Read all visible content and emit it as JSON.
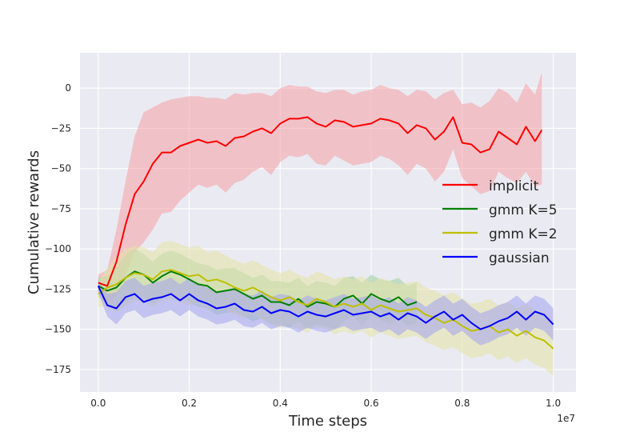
{
  "chart_data": {
    "type": "line",
    "title": "",
    "xlabel": "Time steps",
    "ylabel": "Cumulative rewards",
    "x_offset_label": "1e7",
    "xlim": [
      -0.04,
      1.05
    ],
    "ylim": [
      -189,
      22
    ],
    "x_ticks": [
      0.0,
      0.2,
      0.4,
      0.6,
      0.8,
      1.0
    ],
    "x_tick_labels": [
      "0.0",
      "0.2",
      "0.4",
      "0.6",
      "0.8",
      "1.0"
    ],
    "y_ticks": [
      -175,
      -150,
      -125,
      -100,
      -75,
      -50,
      -25,
      0
    ],
    "y_tick_labels": [
      "−175",
      "−150",
      "−125",
      "−100",
      "−75",
      "−50",
      "−25",
      "0"
    ],
    "grid": true,
    "legend_position": "center-right",
    "series": [
      {
        "name": "implicit",
        "color": "#ff0000",
        "band_color": "#f4a0a6",
        "x": [
          0.0,
          0.02,
          0.04,
          0.06,
          0.08,
          0.1,
          0.12,
          0.14,
          0.16,
          0.18,
          0.2,
          0.22,
          0.24,
          0.26,
          0.28,
          0.3,
          0.32,
          0.34,
          0.36,
          0.38,
          0.4,
          0.42,
          0.44,
          0.46,
          0.48,
          0.5,
          0.52,
          0.54,
          0.56,
          0.58,
          0.6,
          0.62,
          0.64,
          0.66,
          0.68,
          0.7,
          0.72,
          0.74,
          0.76,
          0.78,
          0.8,
          0.82,
          0.84,
          0.86,
          0.88,
          0.9,
          0.92,
          0.94,
          0.96,
          0.975
        ],
        "values": [
          -121,
          -123,
          -108,
          -85,
          -66,
          -58,
          -47,
          -40,
          -40,
          -36,
          -34,
          -32,
          -34,
          -33,
          -36,
          -31,
          -30,
          -27,
          -25,
          -28,
          -22,
          -19,
          -19,
          -18,
          -22,
          -24,
          -20,
          -21,
          -24,
          -23,
          -22,
          -19,
          -20,
          -22,
          -28,
          -23,
          -25,
          -32,
          -27,
          -18,
          -34,
          -35,
          -40,
          -38,
          -27,
          -31,
          -35,
          -24,
          -33,
          -26
        ],
        "upper": [
          -116,
          -113,
          -88,
          -58,
          -30,
          -15,
          -12,
          -9,
          -7,
          -6,
          -5,
          -5,
          -6,
          -6,
          -7,
          -3,
          -4,
          -3,
          -3,
          -5,
          0,
          2,
          1,
          1,
          -2,
          -3,
          -1,
          -1,
          -4,
          -2,
          -1,
          2,
          0,
          -1,
          -5,
          -1,
          -2,
          -7,
          -3,
          -1,
          -10,
          -9,
          -12,
          -8,
          0,
          -3,
          -9,
          3,
          -4,
          10
        ],
        "lower": [
          -130,
          -134,
          -129,
          -116,
          -102,
          -96,
          -88,
          -78,
          -77,
          -70,
          -65,
          -60,
          -62,
          -60,
          -65,
          -59,
          -57,
          -52,
          -49,
          -54,
          -46,
          -42,
          -43,
          -41,
          -47,
          -48,
          -42,
          -45,
          -48,
          -47,
          -46,
          -42,
          -44,
          -48,
          -54,
          -47,
          -50,
          -58,
          -52,
          -38,
          -56,
          -61,
          -66,
          -64,
          -52,
          -56,
          -59,
          -52,
          -61,
          -60
        ]
      },
      {
        "name": "gmm K=5",
        "color": "#008000",
        "band_color": "#9ccf9c",
        "x": [
          0.0,
          0.02,
          0.04,
          0.06,
          0.08,
          0.1,
          0.12,
          0.14,
          0.16,
          0.18,
          0.2,
          0.22,
          0.24,
          0.26,
          0.28,
          0.3,
          0.32,
          0.34,
          0.36,
          0.38,
          0.4,
          0.42,
          0.44,
          0.46,
          0.48,
          0.5,
          0.52,
          0.54,
          0.56,
          0.58,
          0.6,
          0.62,
          0.64,
          0.66,
          0.68,
          0.7
        ],
        "values": [
          -123,
          -126,
          -124,
          -118,
          -114,
          -116,
          -121,
          -117,
          -114,
          -116,
          -119,
          -122,
          -123,
          -127,
          -126,
          -125,
          -128,
          -131,
          -129,
          -133,
          -133,
          -135,
          -131,
          -136,
          -133,
          -134,
          -136,
          -131,
          -129,
          -134,
          -128,
          -131,
          -133,
          -130,
          -135,
          -133
        ],
        "upper": [
          -118,
          -117,
          -112,
          -104,
          -100,
          -103,
          -108,
          -103,
          -101,
          -103,
          -106,
          -109,
          -110,
          -113,
          -112,
          -112,
          -115,
          -118,
          -116,
          -120,
          -120,
          -121,
          -118,
          -123,
          -120,
          -121,
          -123,
          -118,
          -117,
          -121,
          -116,
          -119,
          -120,
          -118,
          -123,
          -121
        ],
        "lower": [
          -129,
          -135,
          -137,
          -133,
          -129,
          -130,
          -134,
          -131,
          -128,
          -130,
          -133,
          -136,
          -137,
          -141,
          -140,
          -139,
          -142,
          -145,
          -143,
          -147,
          -147,
          -149,
          -145,
          -150,
          -147,
          -148,
          -150,
          -145,
          -142,
          -148,
          -141,
          -144,
          -147,
          -143,
          -148,
          -146
        ]
      },
      {
        "name": "gmm K=2",
        "color": "#bfbf00",
        "band_color": "#e4e4a6",
        "x": [
          0.0,
          0.02,
          0.04,
          0.06,
          0.08,
          0.1,
          0.12,
          0.14,
          0.16,
          0.18,
          0.2,
          0.22,
          0.24,
          0.26,
          0.28,
          0.3,
          0.32,
          0.34,
          0.36,
          0.38,
          0.4,
          0.42,
          0.44,
          0.46,
          0.48,
          0.5,
          0.52,
          0.54,
          0.56,
          0.58,
          0.6,
          0.62,
          0.64,
          0.66,
          0.68,
          0.7,
          0.72,
          0.74,
          0.76,
          0.78,
          0.8,
          0.82,
          0.84,
          0.86,
          0.88,
          0.9,
          0.92,
          0.94,
          0.96,
          0.98,
          1.0
        ],
        "values": [
          -128,
          -124,
          -122,
          -118,
          -115,
          -116,
          -119,
          -114,
          -113,
          -115,
          -117,
          -116,
          -120,
          -119,
          -121,
          -124,
          -126,
          -124,
          -127,
          -130,
          -132,
          -130,
          -133,
          -135,
          -131,
          -133,
          -136,
          -134,
          -136,
          -134,
          -138,
          -135,
          -137,
          -139,
          -138,
          -137,
          -141,
          -143,
          -146,
          -144,
          -148,
          -151,
          -150,
          -148,
          -152,
          -150,
          -154,
          -151,
          -155,
          -157,
          -162
        ],
        "upper": [
          -120,
          -112,
          -105,
          -100,
          -98,
          -99,
          -102,
          -96,
          -95,
          -97,
          -99,
          -98,
          -102,
          -101,
          -104,
          -107,
          -109,
          -107,
          -110,
          -113,
          -115,
          -113,
          -116,
          -118,
          -114,
          -116,
          -119,
          -117,
          -119,
          -117,
          -121,
          -118,
          -120,
          -122,
          -121,
          -120,
          -124,
          -126,
          -129,
          -127,
          -131,
          -134,
          -133,
          -131,
          -135,
          -133,
          -137,
          -134,
          -138,
          -140,
          -145
        ],
        "lower": [
          -136,
          -136,
          -139,
          -136,
          -132,
          -133,
          -136,
          -132,
          -131,
          -133,
          -135,
          -134,
          -138,
          -137,
          -138,
          -141,
          -143,
          -141,
          -144,
          -147,
          -149,
          -147,
          -150,
          -152,
          -148,
          -150,
          -153,
          -151,
          -153,
          -151,
          -155,
          -152,
          -154,
          -156,
          -155,
          -154,
          -158,
          -160,
          -163,
          -161,
          -165,
          -168,
          -167,
          -165,
          -169,
          -167,
          -171,
          -168,
          -172,
          -174,
          -179
        ]
      },
      {
        "name": "gaussian",
        "color": "#0000ff",
        "band_color": "#a3a3f0",
        "x": [
          0.0,
          0.02,
          0.04,
          0.06,
          0.08,
          0.1,
          0.12,
          0.14,
          0.16,
          0.18,
          0.2,
          0.22,
          0.24,
          0.26,
          0.28,
          0.3,
          0.32,
          0.34,
          0.36,
          0.38,
          0.4,
          0.42,
          0.44,
          0.46,
          0.48,
          0.5,
          0.52,
          0.54,
          0.56,
          0.58,
          0.6,
          0.62,
          0.64,
          0.66,
          0.68,
          0.7,
          0.72,
          0.74,
          0.76,
          0.78,
          0.8,
          0.82,
          0.84,
          0.86,
          0.88,
          0.9,
          0.92,
          0.94,
          0.96,
          0.98,
          1.0
        ],
        "values": [
          -123,
          -135,
          -137,
          -130,
          -128,
          -133,
          -131,
          -130,
          -128,
          -132,
          -128,
          -132,
          -134,
          -137,
          -136,
          -134,
          -138,
          -139,
          -136,
          -140,
          -138,
          -139,
          -142,
          -139,
          -141,
          -142,
          -140,
          -138,
          -141,
          -140,
          -139,
          -142,
          -140,
          -144,
          -140,
          -142,
          -146,
          -142,
          -139,
          -144,
          -141,
          -146,
          -150,
          -148,
          -145,
          -143,
          -139,
          -144,
          -139,
          -141,
          -147
        ],
        "upper": [
          -119,
          -128,
          -127,
          -120,
          -118,
          -123,
          -121,
          -120,
          -118,
          -122,
          -118,
          -122,
          -124,
          -127,
          -126,
          -124,
          -128,
          -129,
          -126,
          -130,
          -128,
          -129,
          -132,
          -129,
          -131,
          -132,
          -130,
          -128,
          -131,
          -130,
          -129,
          -132,
          -130,
          -134,
          -130,
          -132,
          -136,
          -132,
          -129,
          -134,
          -131,
          -136,
          -140,
          -138,
          -135,
          -133,
          -129,
          -134,
          -129,
          -131,
          -137
        ],
        "lower": [
          -127,
          -142,
          -147,
          -140,
          -138,
          -143,
          -141,
          -140,
          -138,
          -142,
          -138,
          -142,
          -144,
          -147,
          -146,
          -144,
          -148,
          -149,
          -146,
          -150,
          -148,
          -149,
          -152,
          -149,
          -151,
          -152,
          -150,
          -148,
          -151,
          -150,
          -149,
          -152,
          -150,
          -154,
          -150,
          -152,
          -156,
          -152,
          -149,
          -154,
          -151,
          -156,
          -160,
          -158,
          -155,
          -153,
          -149,
          -154,
          -149,
          -151,
          -157
        ]
      }
    ]
  }
}
